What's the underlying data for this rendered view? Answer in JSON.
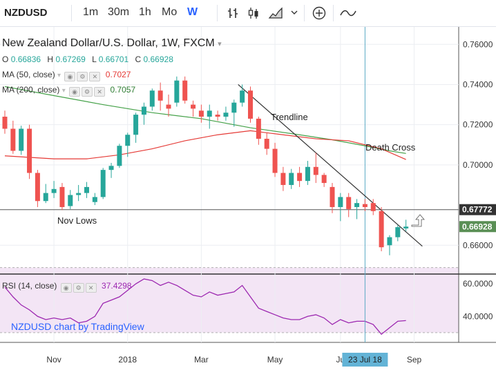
{
  "toolbar": {
    "symbol": "NZDUSD",
    "intervals": [
      "1m",
      "30m",
      "1h",
      "Mo",
      "W"
    ],
    "active_interval": "W",
    "tools": [
      "bar-style-icon",
      "candle-style-icon",
      "area-style-icon",
      "add-indicator-icon",
      "compare-icon"
    ]
  },
  "legend": {
    "title": "New Zealand Dollar/U.S. Dollar, 1W, FXCM",
    "open": "0.66836",
    "high": "0.67269",
    "low": "0.66701",
    "close": "0.66928",
    "ma50_label": "MA (50, close)",
    "ma50_value": "0.7027",
    "ma50_color": "#e53935",
    "ma200_label": "MA (200, close)",
    "ma200_value": "0.7057",
    "ma200_color": "#2e7d32",
    "rsi_label": "RSI (14, close)",
    "rsi_value": "37.4298"
  },
  "watermark": "NZDUSD chart by TradingView",
  "annotations": {
    "trendline": "Trendline",
    "death_cross": "Death Cross",
    "nov_lows": "Nov Lows"
  },
  "colors": {
    "up": "#26a69a",
    "down": "#ef5350",
    "ma50": "#e53935",
    "ma200": "#43a047",
    "rsi": "#9c27b0",
    "rsi_band": "#f3e5f5",
    "crosshair": "#5aa9c4"
  },
  "chart_data": {
    "type": "candlestick",
    "title": "New Zealand Dollar/U.S. Dollar, 1W, FXCM",
    "price_range": [
      0.646,
      0.768
    ],
    "price_ticks": [
      "0.76000",
      "0.74000",
      "0.72000",
      "0.70000",
      "0.66000"
    ],
    "price_labels": [
      {
        "text": "0.67772",
        "value": 0.67772,
        "kind": "horizontal-line"
      },
      {
        "text": "0.66928",
        "value": 0.66928,
        "kind": "last-price"
      }
    ],
    "x_ticks": [
      {
        "label": "Nov",
        "week": 6
      },
      {
        "label": "2018",
        "week": 15
      },
      {
        "label": "Mar",
        "week": 24
      },
      {
        "label": "May",
        "week": 33
      },
      {
        "label": "Ju",
        "week": 41
      },
      {
        "label": "Sep",
        "week": 50
      }
    ],
    "crosshair": {
      "label": "23 Jul 18",
      "week": 44
    },
    "candles": [
      [
        0.724,
        0.727,
        0.7155,
        0.718
      ],
      [
        0.718,
        0.722,
        0.7055,
        0.707
      ],
      [
        0.707,
        0.7195,
        0.705,
        0.718
      ],
      [
        0.718,
        0.72,
        0.693,
        0.696
      ],
      [
        0.696,
        0.6975,
        0.679,
        0.682
      ],
      [
        0.682,
        0.6905,
        0.681,
        0.686
      ],
      [
        0.686,
        0.692,
        0.6835,
        0.688
      ],
      [
        0.689,
        0.691,
        0.6775,
        0.679
      ],
      [
        0.6795,
        0.6875,
        0.678,
        0.685
      ],
      [
        0.685,
        0.69,
        0.682,
        0.686
      ],
      [
        0.686,
        0.6915,
        0.6835,
        0.689
      ],
      [
        0.6815,
        0.686,
        0.68,
        0.684
      ],
      [
        0.684,
        0.6985,
        0.683,
        0.6975
      ],
      [
        0.6975,
        0.701,
        0.6935,
        0.6995
      ],
      [
        0.6995,
        0.7105,
        0.6985,
        0.7095
      ],
      [
        0.7095,
        0.716,
        0.704,
        0.715
      ],
      [
        0.715,
        0.726,
        0.711,
        0.725
      ],
      [
        0.725,
        0.731,
        0.72,
        0.729
      ],
      [
        0.729,
        0.738,
        0.727,
        0.737
      ],
      [
        0.737,
        0.741,
        0.727,
        0.732
      ],
      [
        0.73,
        0.735,
        0.724,
        0.728
      ],
      [
        0.731,
        0.744,
        0.729,
        0.742
      ],
      [
        0.742,
        0.744,
        0.7305,
        0.732
      ],
      [
        0.73,
        0.732,
        0.724,
        0.728
      ],
      [
        0.727,
        0.73,
        0.721,
        0.724
      ],
      [
        0.724,
        0.73,
        0.718,
        0.727
      ],
      [
        0.725,
        0.727,
        0.722,
        0.724
      ],
      [
        0.724,
        0.729,
        0.722,
        0.726
      ],
      [
        0.726,
        0.7325,
        0.719,
        0.731
      ],
      [
        0.731,
        0.74,
        0.729,
        0.737
      ],
      [
        0.737,
        0.739,
        0.721,
        0.723
      ],
      [
        0.723,
        0.724,
        0.71,
        0.713
      ],
      [
        0.713,
        0.716,
        0.705,
        0.708
      ],
      [
        0.708,
        0.711,
        0.694,
        0.696
      ],
      [
        0.696,
        0.699,
        0.687,
        0.69
      ],
      [
        0.69,
        0.698,
        0.688,
        0.696
      ],
      [
        0.696,
        0.699,
        0.689,
        0.692
      ],
      [
        0.692,
        0.702,
        0.69,
        0.699
      ],
      [
        0.699,
        0.706,
        0.691,
        0.695
      ],
      [
        0.695,
        0.696,
        0.689,
        0.691
      ],
      [
        0.689,
        0.691,
        0.676,
        0.679
      ],
      [
        0.679,
        0.686,
        0.672,
        0.684
      ],
      [
        0.684,
        0.686,
        0.674,
        0.678
      ],
      [
        0.679,
        0.683,
        0.673,
        0.681
      ],
      [
        0.6805,
        0.683,
        0.677,
        0.679
      ],
      [
        0.681,
        0.683,
        0.675,
        0.677
      ],
      [
        0.677,
        0.679,
        0.657,
        0.659
      ],
      [
        0.66,
        0.665,
        0.655,
        0.664
      ],
      [
        0.664,
        0.67,
        0.662,
        0.669
      ],
      [
        0.66836,
        0.67269,
        0.66701,
        0.66928
      ]
    ],
    "ma50": [
      [
        0,
        0.7045
      ],
      [
        6,
        0.703
      ],
      [
        10,
        0.703
      ],
      [
        14,
        0.705
      ],
      [
        18,
        0.708
      ],
      [
        22,
        0.712
      ],
      [
        26,
        0.715
      ],
      [
        30,
        0.717
      ],
      [
        34,
        0.715
      ],
      [
        38,
        0.713
      ],
      [
        42,
        0.712
      ],
      [
        46,
        0.708
      ],
      [
        49,
        0.7027
      ]
    ],
    "ma200": [
      [
        0,
        0.739
      ],
      [
        6,
        0.7345
      ],
      [
        12,
        0.73
      ],
      [
        18,
        0.726
      ],
      [
        24,
        0.723
      ],
      [
        30,
        0.7185
      ],
      [
        36,
        0.715
      ],
      [
        40,
        0.7125
      ],
      [
        44,
        0.7095
      ],
      [
        47,
        0.707
      ],
      [
        49,
        0.7057
      ]
    ],
    "trendline": [
      [
        28.5,
        0.74
      ],
      [
        51,
        0.6595
      ]
    ],
    "nov_lows_level": 0.67772,
    "rsi": {
      "range": [
        24,
        66
      ],
      "ticks": [
        "60.0000",
        "40.0000"
      ],
      "band": [
        30,
        70
      ],
      "values": [
        [
          0,
          58
        ],
        [
          1,
          52
        ],
        [
          2,
          47
        ],
        [
          3,
          44
        ],
        [
          4,
          40
        ],
        [
          5,
          38
        ],
        [
          6,
          39
        ],
        [
          7,
          38
        ],
        [
          8,
          39
        ],
        [
          9,
          36
        ],
        [
          10,
          37
        ],
        [
          11,
          40
        ],
        [
          12,
          48
        ],
        [
          13,
          50
        ],
        [
          14,
          52
        ],
        [
          15,
          56
        ],
        [
          16,
          60
        ],
        [
          17,
          63
        ],
        [
          18,
          62
        ],
        [
          19,
          59
        ],
        [
          20,
          61
        ],
        [
          21,
          59
        ],
        [
          22,
          56
        ],
        [
          23,
          53
        ],
        [
          24,
          52
        ],
        [
          25,
          55
        ],
        [
          26,
          53
        ],
        [
          27,
          54
        ],
        [
          28,
          55
        ],
        [
          29,
          59
        ],
        [
          30,
          52
        ],
        [
          31,
          45
        ],
        [
          32,
          43
        ],
        [
          33,
          41
        ],
        [
          34,
          39
        ],
        [
          35,
          38
        ],
        [
          36,
          38
        ],
        [
          37,
          40
        ],
        [
          38,
          41
        ],
        [
          39,
          39
        ],
        [
          40,
          35
        ],
        [
          41,
          38
        ],
        [
          42,
          36
        ],
        [
          43,
          37
        ],
        [
          44,
          37
        ],
        [
          45,
          35
        ],
        [
          46,
          29
        ],
        [
          47,
          33
        ],
        [
          48,
          37
        ],
        [
          49,
          37.4298
        ]
      ]
    }
  }
}
